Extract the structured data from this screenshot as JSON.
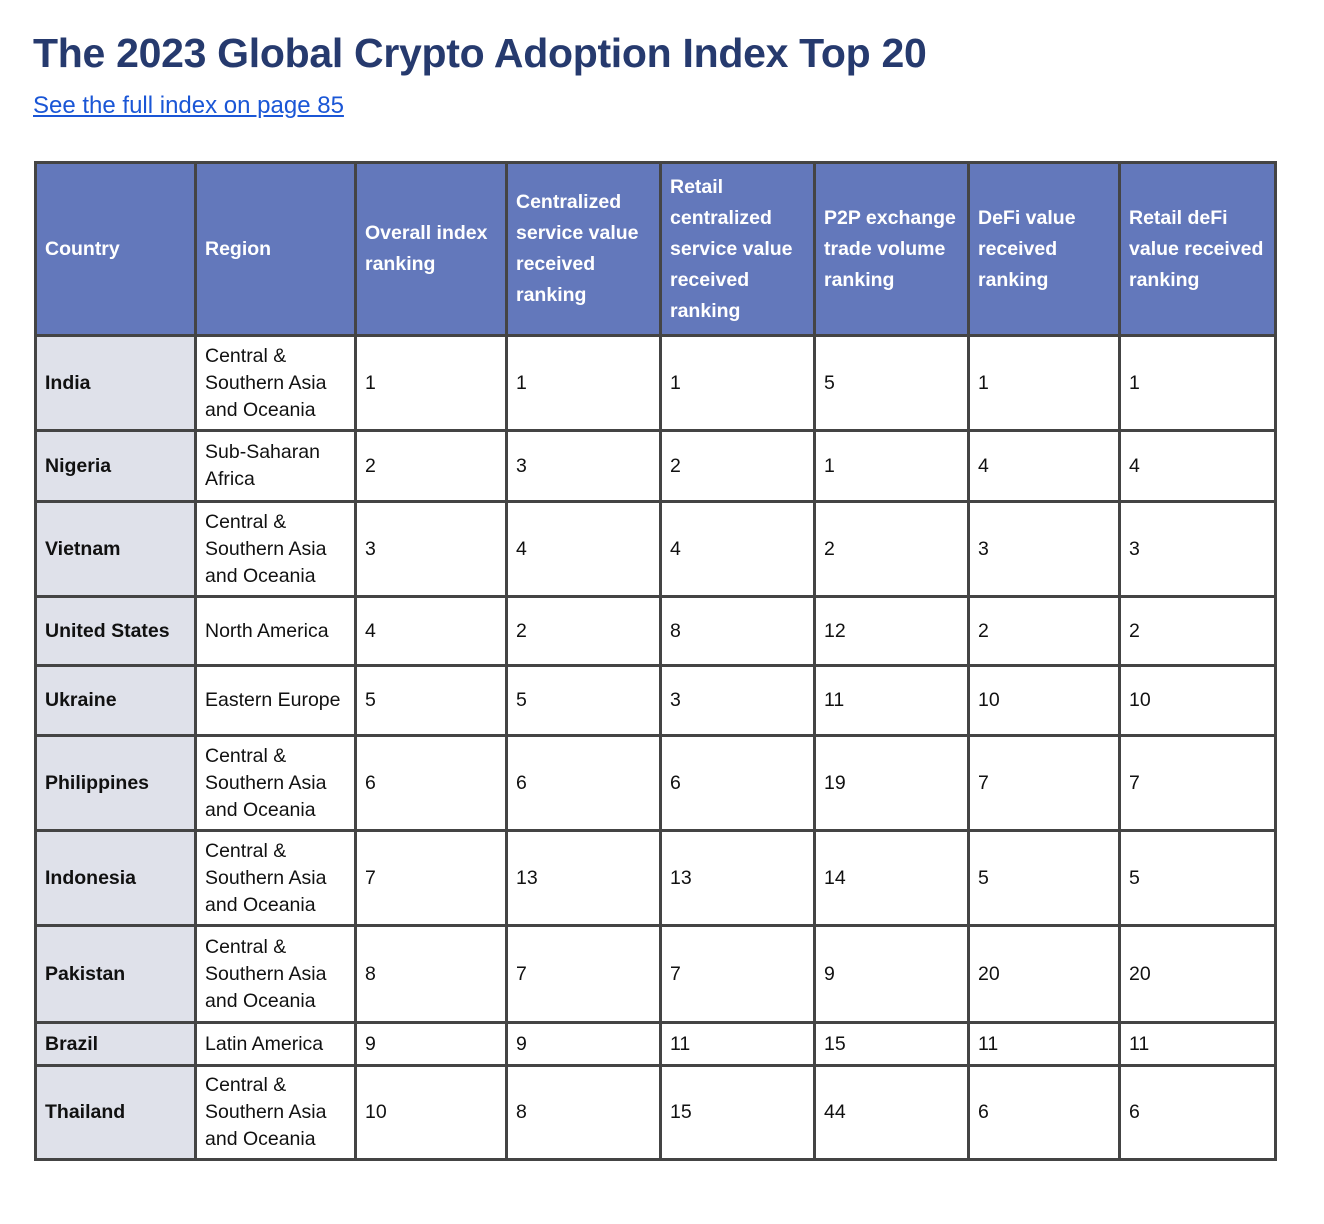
{
  "title": "The 2023 Global Crypto Adoption Index Top 20",
  "link": "See the full index on page 85",
  "colors": {
    "header_bg": "#6378bb",
    "country_bg": "#dfe1ea",
    "title": "#263a6e",
    "link": "#1a56d6"
  },
  "columns": [
    "Country",
    "Region",
    "Overall index ranking",
    "Centralized service value received ranking",
    "Retail centralized service value received ranking",
    "P2P exchange trade volume ranking",
    "DeFi value received ranking",
    "Retail deFi value received ranking"
  ],
  "rows": [
    [
      "India",
      "Central & Southern Asia and Oceania",
      "1",
      "1",
      "1",
      "5",
      "1",
      "1"
    ],
    [
      "Nigeria",
      "Sub-Saharan Africa",
      "2",
      "3",
      "2",
      "1",
      "4",
      "4"
    ],
    [
      "Vietnam",
      "Central & Southern Asia and Oceania",
      "3",
      "4",
      "4",
      "2",
      "3",
      "3"
    ],
    [
      "United States",
      "North America",
      "4",
      "2",
      "8",
      "12",
      "2",
      "2"
    ],
    [
      "Ukraine",
      "Eastern Europe",
      "5",
      "5",
      "3",
      "11",
      "10",
      "10"
    ],
    [
      "Philippines",
      "Central & Southern Asia and Oceania",
      "6",
      "6",
      "6",
      "19",
      "7",
      "7"
    ],
    [
      "Indonesia",
      "Central & Southern Asia and Oceania",
      "7",
      "13",
      "13",
      "14",
      "5",
      "5"
    ],
    [
      "Pakistan",
      "Central & Southern Asia and Oceania",
      "8",
      "7",
      "7",
      "9",
      "20",
      "20"
    ],
    [
      "Brazil",
      "Latin America",
      "9",
      "9",
      "11",
      "15",
      "11",
      "11"
    ],
    [
      "Thailand",
      "Central & Southern Asia and Oceania",
      "10",
      "8",
      "15",
      "44",
      "6",
      "6"
    ]
  ]
}
